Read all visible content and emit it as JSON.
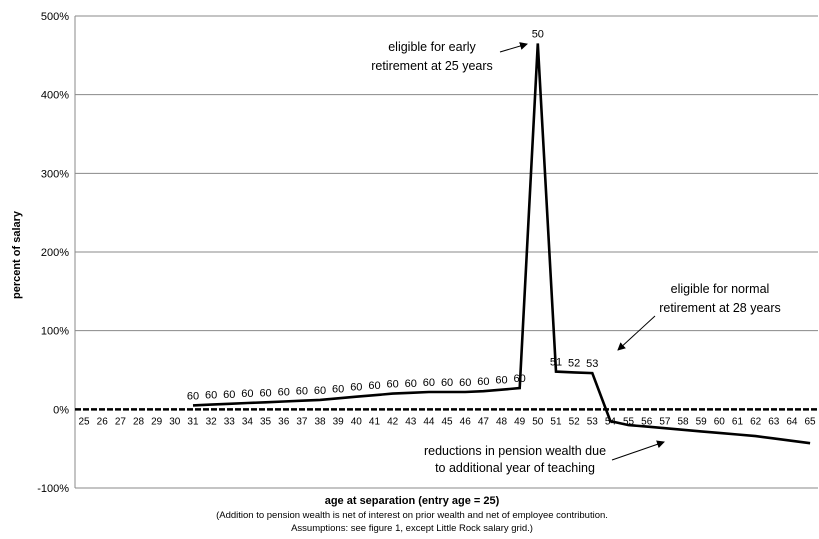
{
  "chart_data": {
    "type": "line",
    "xlabel": "age at separation (entry age = 25)",
    "ylabel": "percent of salary",
    "notes": [
      "(Addition to pension wealth is net of interest on prior wealth and net of employee contribution.",
      "Assumptions:  see figure 1, except Little Rock salary grid.)"
    ],
    "ylim": [
      -100,
      500
    ],
    "yticks": [
      -100,
      0,
      100,
      200,
      300,
      400,
      500
    ],
    "ytick_labels": [
      "-100%",
      "0%",
      "100%",
      "200%",
      "300%",
      "400%",
      "500%"
    ],
    "x_categories": [
      "25",
      "26",
      "27",
      "28",
      "29",
      "30",
      "31",
      "32",
      "33",
      "34",
      "35",
      "36",
      "37",
      "38",
      "39",
      "40",
      "41",
      "42",
      "43",
      "44",
      "45",
      "46",
      "47",
      "48",
      "49",
      "50",
      "51",
      "52",
      "53",
      "54",
      "55",
      "56",
      "57",
      "58",
      "59",
      "60",
      "61",
      "62",
      "63",
      "64",
      "65"
    ],
    "grid": true,
    "series": [
      {
        "x": [
          31,
          32,
          33,
          34,
          35,
          36,
          37,
          38,
          39,
          40,
          41,
          42,
          43,
          44,
          45,
          46,
          47,
          48,
          49,
          50,
          51,
          52,
          53,
          54,
          55,
          56,
          57,
          58,
          59,
          60,
          61,
          62,
          63,
          64,
          65
        ],
        "y": [
          5,
          6,
          7,
          8,
          9,
          10,
          11,
          12,
          14,
          16,
          18,
          20,
          21,
          22,
          22,
          22,
          23,
          25,
          27,
          465,
          48,
          47,
          46,
          -15,
          -20,
          -22,
          -24,
          -26,
          -28,
          -30,
          -32,
          -34,
          -37,
          -40,
          -43
        ]
      }
    ],
    "point_labels": [
      {
        "x": 31,
        "label": "60"
      },
      {
        "x": 32,
        "label": "60"
      },
      {
        "x": 33,
        "label": "60"
      },
      {
        "x": 34,
        "label": "60"
      },
      {
        "x": 35,
        "label": "60"
      },
      {
        "x": 36,
        "label": "60"
      },
      {
        "x": 37,
        "label": "60"
      },
      {
        "x": 38,
        "label": "60"
      },
      {
        "x": 39,
        "label": "60"
      },
      {
        "x": 40,
        "label": "60"
      },
      {
        "x": 41,
        "label": "60"
      },
      {
        "x": 42,
        "label": "60"
      },
      {
        "x": 43,
        "label": "60"
      },
      {
        "x": 44,
        "label": "60"
      },
      {
        "x": 45,
        "label": "60"
      },
      {
        "x": 46,
        "label": "60"
      },
      {
        "x": 47,
        "label": "60"
      },
      {
        "x": 48,
        "label": "60"
      },
      {
        "x": 49,
        "label": "60"
      },
      {
        "x": 50,
        "label": "50"
      },
      {
        "x": 51,
        "label": "51"
      },
      {
        "x": 52,
        "label": "52"
      },
      {
        "x": 53,
        "label": "53"
      }
    ],
    "annotations": [
      {
        "lines": [
          "eligible for early",
          "retirement at 25 years"
        ],
        "points_to_x": 50
      },
      {
        "lines": [
          "eligible for normal",
          "retirement at 28 years"
        ],
        "points_to_x": 53
      },
      {
        "lines": [
          "reductions in pension wealth due",
          "to additional year of teaching"
        ],
        "points_to_x": 57
      }
    ]
  }
}
